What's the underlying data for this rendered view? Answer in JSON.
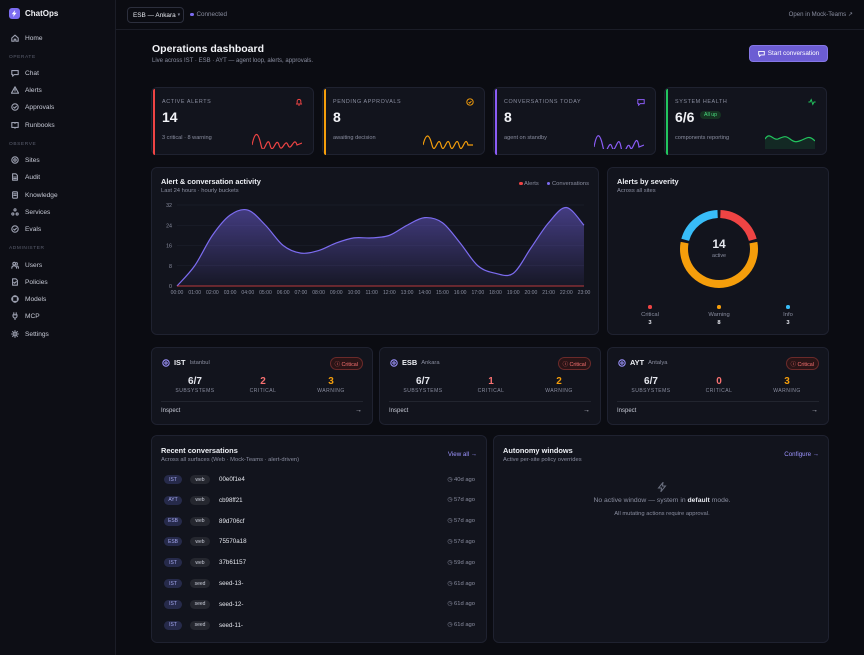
{
  "brand": "ChatOps",
  "nav": {
    "home": "Home",
    "operate_label": "OPERATE",
    "operate": [
      "Chat",
      "Alerts",
      "Approvals",
      "Runbooks"
    ],
    "observe_label": "OBSERVE",
    "observe": [
      "Sites",
      "Audit",
      "Knowledge",
      "Services",
      "Evals"
    ],
    "administer_label": "ADMINISTER",
    "administer": [
      "Users",
      "Policies",
      "Models",
      "MCP",
      "Settings"
    ]
  },
  "topbar": {
    "site_select": "ESB — Ankara",
    "status": "Connected",
    "open_link": "Open in Mock-Teams ↗"
  },
  "page": {
    "title": "Operations dashboard",
    "subtitle": "Live across IST · ESB · AYT — agent loop, alerts, approvals.",
    "start_button": "Start conversation"
  },
  "kpis": [
    {
      "label": "ACTIVE ALERTS",
      "value": "14",
      "note": "3 critical · 8 warning",
      "color": "#ef4444",
      "icon": "bell-icon"
    },
    {
      "label": "PENDING APPROVALS",
      "value": "8",
      "note": "awaiting decision",
      "color": "#f59e0b",
      "icon": "clock-check-icon"
    },
    {
      "label": "CONVERSATIONS TODAY",
      "value": "8",
      "note": "agent on standby",
      "color": "#8b5cf6",
      "icon": "message-icon"
    },
    {
      "label": "SYSTEM HEALTH",
      "value": "6/6",
      "badge": "All up",
      "note": "components reporting",
      "color": "#22c55e",
      "icon": "pulse-icon"
    }
  ],
  "activity": {
    "title": "Alert & conversation activity",
    "subtitle": "Last 24 hours · hourly buckets",
    "legend_alerts": "Alerts",
    "legend_conversations": "Conversations"
  },
  "severity": {
    "title": "Alerts by severity",
    "subtitle": "Across all sites",
    "total": "14",
    "total_label": "active",
    "items": [
      {
        "name": "Critical",
        "value": "3",
        "color": "#ef4444"
      },
      {
        "name": "Warning",
        "value": "8",
        "color": "#f59e0b"
      },
      {
        "name": "Info",
        "value": "3",
        "color": "#38bdf8"
      }
    ]
  },
  "chart_data": [
    {
      "type": "area",
      "title": "Alert & conversation activity",
      "x": [
        "00:00",
        "01:00",
        "02:00",
        "03:00",
        "04:00",
        "05:00",
        "06:00",
        "07:00",
        "08:00",
        "09:00",
        "10:00",
        "11:00",
        "12:00",
        "13:00",
        "14:00",
        "15:00",
        "16:00",
        "17:00",
        "18:00",
        "19:00",
        "20:00",
        "21:00",
        "22:00",
        "23:00"
      ],
      "series": [
        {
          "name": "Conversations",
          "values": [
            0,
            8,
            20,
            28,
            30,
            24,
            16,
            13,
            14,
            17,
            19,
            19,
            20,
            24,
            27,
            25,
            17,
            8,
            5,
            5,
            15,
            25,
            31,
            24
          ]
        },
        {
          "name": "Alerts",
          "values": [
            0,
            0,
            0,
            0,
            0,
            0,
            0,
            0,
            0,
            0,
            0,
            0,
            0,
            0,
            0,
            0,
            0,
            0,
            0,
            0,
            0,
            0,
            0,
            0
          ]
        }
      ],
      "yticks": [
        "0",
        "8",
        "16",
        "24",
        "32"
      ],
      "ylim": [
        0,
        32
      ],
      "grid": true,
      "legend": "top-right"
    },
    {
      "type": "pie",
      "title": "Alerts by severity",
      "categories": [
        "Critical",
        "Warning",
        "Info"
      ],
      "values": [
        3,
        8,
        3
      ]
    }
  ],
  "sites": [
    {
      "code": "IST",
      "city": "Istanbul",
      "badge": "Critical",
      "subsystems": "6/7",
      "critical": "2",
      "warning": "3",
      "inspect": "Inspect"
    },
    {
      "code": "ESB",
      "city": "Ankara",
      "badge": "Critical",
      "subsystems": "6/7",
      "critical": "1",
      "warning": "2",
      "inspect": "Inspect"
    },
    {
      "code": "AYT",
      "city": "Antalya",
      "badge": "Critical",
      "subsystems": "6/7",
      "critical": "0",
      "warning": "3",
      "inspect": "Inspect"
    }
  ],
  "metric_labels": {
    "subsystems": "SUBSYSTEMS",
    "critical": "CRITICAL",
    "warning": "WARNING"
  },
  "recent": {
    "title": "Recent conversations",
    "subtitle": "Across all surfaces (Web · Mock-Teams · alert-driven)",
    "view_all": "View all →",
    "rows": [
      {
        "site": "IST",
        "src": "web",
        "id": "00e0f1e4",
        "ago": "40d ago"
      },
      {
        "site": "AYT",
        "src": "web",
        "id": "cb98ff21",
        "ago": "57d ago"
      },
      {
        "site": "ESB",
        "src": "web",
        "id": "89d706cf",
        "ago": "57d ago"
      },
      {
        "site": "ESB",
        "src": "web",
        "id": "75570a18",
        "ago": "57d ago"
      },
      {
        "site": "IST",
        "src": "web",
        "id": "37b61157",
        "ago": "59d ago"
      },
      {
        "site": "IST",
        "src": "seed",
        "id": "seed-13-",
        "ago": "61d ago"
      },
      {
        "site": "IST",
        "src": "seed",
        "id": "seed-12-",
        "ago": "61d ago"
      },
      {
        "site": "IST",
        "src": "seed",
        "id": "seed-11-",
        "ago": "61d ago"
      }
    ]
  },
  "autonomy": {
    "title": "Autonomy windows",
    "subtitle": "Active per-site policy overrides",
    "configure": "Configure →",
    "empty_pre": "No active window — system in ",
    "empty_bold": "default",
    "empty_post": " mode.",
    "empty_note": "All mutating actions require approval."
  }
}
